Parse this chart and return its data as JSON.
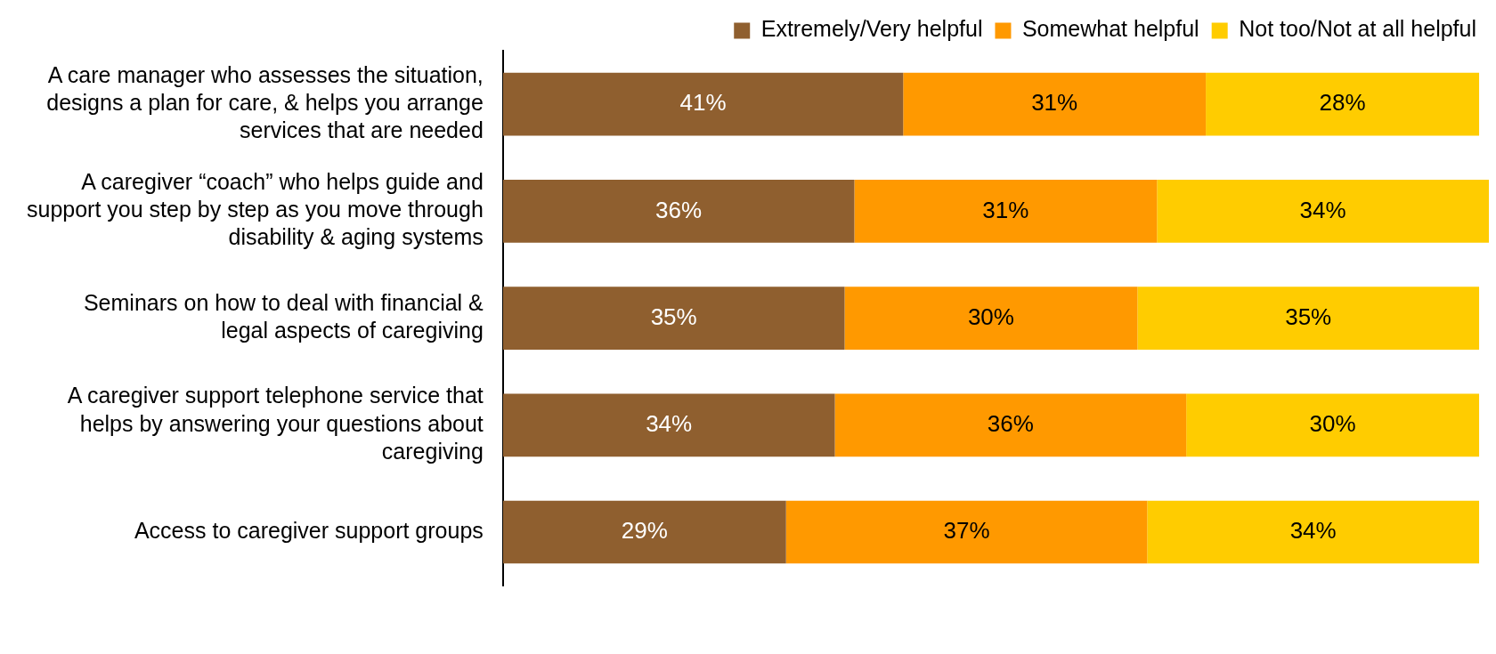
{
  "chart_data": {
    "type": "bar",
    "orientation": "horizontal",
    "stacked": true,
    "legend": "top right",
    "categories": [
      "A care manager who assesses the situation, designs a plan for care, & helps you arrange services that are needed",
      "A caregiver “coach” who helps guide and support you step by step as you move through disability & aging systems",
      "Seminars on how to deal with financial & legal aspects of caregiving",
      "A caregiver support telephone service that helps by answering your questions about caregiving",
      "Access to caregiver support groups"
    ],
    "series": [
      {
        "name": "Extremely/Very helpful",
        "color": "#8f5f2f",
        "values": [
          41,
          36,
          35,
          34,
          29
        ],
        "value_labels": [
          "41%",
          "36%",
          "35%",
          "34%",
          "29%"
        ]
      },
      {
        "name": "Somewhat helpful",
        "color": "#ff9900",
        "values": [
          31,
          31,
          30,
          36,
          37
        ],
        "value_labels": [
          "31%",
          "31%",
          "30%",
          "36%",
          "37%"
        ]
      },
      {
        "name": "Not too/Not at all helpful",
        "color": "#ffcc00",
        "values": [
          28,
          34,
          35,
          30,
          34
        ],
        "value_labels": [
          "28%",
          "34%",
          "35%",
          "30%",
          "34%"
        ]
      }
    ]
  }
}
